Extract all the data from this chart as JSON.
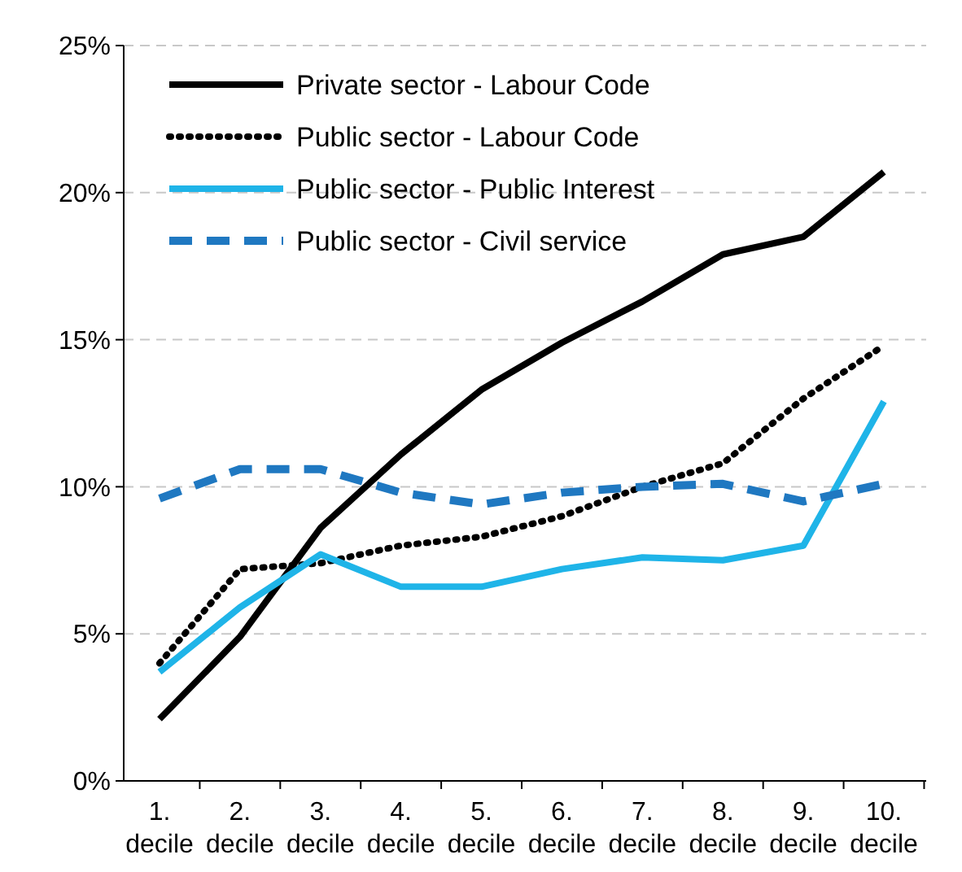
{
  "chart_data": {
    "type": "line",
    "categories": [
      "1. decile",
      "2. decile",
      "3. decile",
      "4. decile",
      "5. decile",
      "6. decile",
      "7. decile",
      "8. decile",
      "9. decile",
      "10. decile"
    ],
    "series": [
      {
        "name": "Private sector - Labour Code",
        "color": "#000000",
        "line_style": "solid",
        "values": [
          2.1,
          4.9,
          8.6,
          11.1,
          13.3,
          14.9,
          16.3,
          17.9,
          18.5,
          20.7
        ]
      },
      {
        "name": "Public sector - Labour Code",
        "color": "#000000",
        "line_style": "dotted",
        "values": [
          4.0,
          7.2,
          7.4,
          8.0,
          8.3,
          9.0,
          10.0,
          10.8,
          13.0,
          14.8
        ]
      },
      {
        "name": "Public sector - Public Interest",
        "color": "#1fb4e8",
        "line_style": "solid",
        "values": [
          3.7,
          5.9,
          7.7,
          6.6,
          6.6,
          7.2,
          7.6,
          7.5,
          8.0,
          12.9
        ]
      },
      {
        "name": "Public sector - Civil service",
        "color": "#1f78c1",
        "line_style": "dashed",
        "values": [
          9.6,
          10.6,
          10.6,
          9.8,
          9.4,
          9.8,
          10.0,
          10.1,
          9.5,
          10.1
        ]
      }
    ],
    "ylim": [
      0,
      25
    ],
    "yticks": [
      {
        "value": 0,
        "label": "0%"
      },
      {
        "value": 5,
        "label": "5%"
      },
      {
        "value": 10,
        "label": "10%"
      },
      {
        "value": 15,
        "label": "15%"
      },
      {
        "value": 20,
        "label": "20%"
      },
      {
        "value": 25,
        "label": "25%"
      }
    ],
    "grid": "y",
    "legend": "top left",
    "marker": "none"
  }
}
